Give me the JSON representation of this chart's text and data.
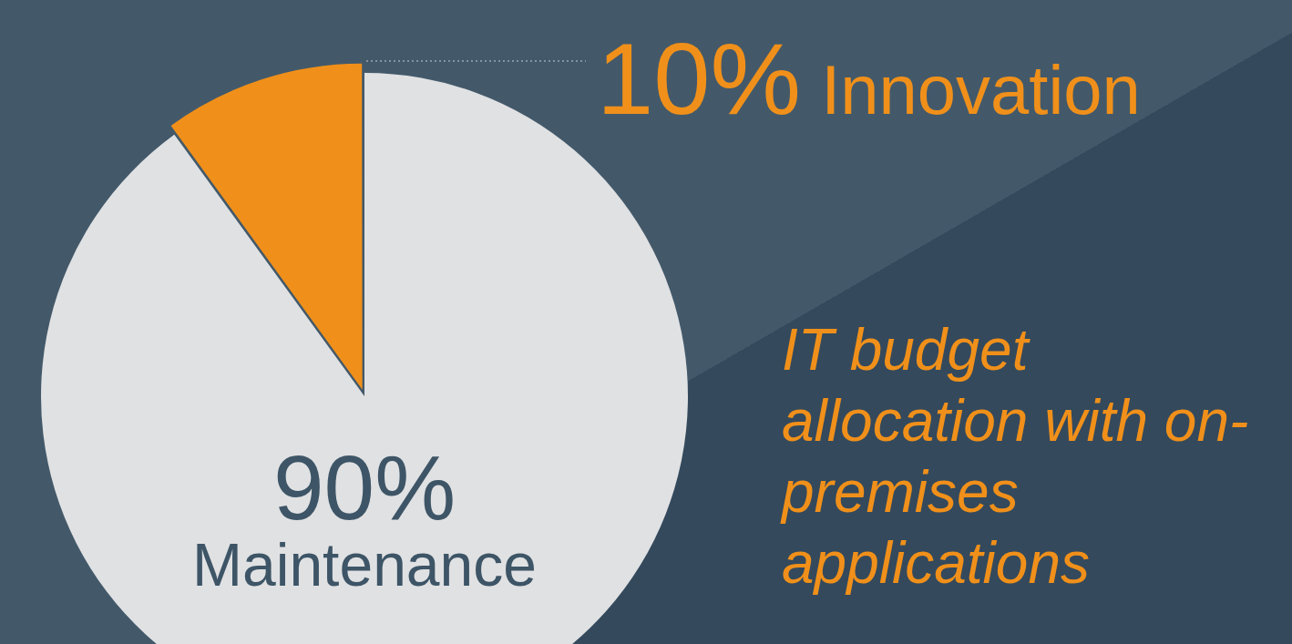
{
  "chart_data": {
    "type": "pie",
    "title": "IT budget allocation with on-premises applications",
    "categories": [
      "Maintenance",
      "Innovation"
    ],
    "values": [
      90,
      10
    ],
    "colors": [
      "#e0e1e3",
      "#f0901a"
    ],
    "value_labels": [
      "90%",
      "10%"
    ],
    "legend": false
  }
}
